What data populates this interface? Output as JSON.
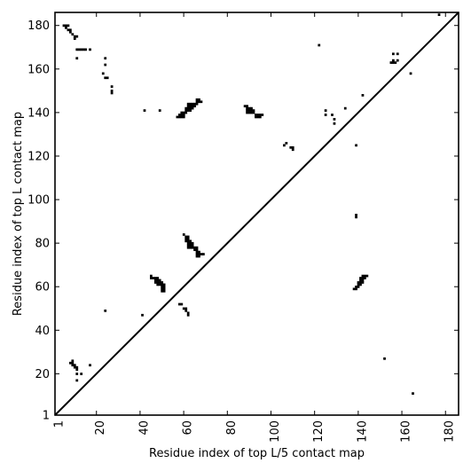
{
  "chart_data": {
    "type": "scatter",
    "xlabel": "Residue index of top L/5 contact map",
    "ylabel": "Residue index of top L contact map",
    "xlim": [
      1,
      186
    ],
    "ylim": [
      1,
      186
    ],
    "xticks": [
      1,
      20,
      40,
      60,
      80,
      100,
      120,
      140,
      160,
      180
    ],
    "yticks": [
      1,
      20,
      40,
      60,
      80,
      100,
      120,
      140,
      160,
      180
    ],
    "diagonal": true,
    "marker_color": "#000000",
    "upper_triangle_points": [
      [
        5,
        180
      ],
      [
        6,
        180
      ],
      [
        7,
        180
      ],
      [
        6,
        179
      ],
      [
        7,
        178
      ],
      [
        8,
        178
      ],
      [
        8,
        177
      ],
      [
        9,
        176
      ],
      [
        10,
        175
      ],
      [
        11,
        175
      ],
      [
        10,
        174
      ],
      [
        11,
        169
      ],
      [
        12,
        169
      ],
      [
        13,
        169
      ],
      [
        14,
        169
      ],
      [
        15,
        169
      ],
      [
        17,
        169
      ],
      [
        11,
        165
      ],
      [
        24,
        165
      ],
      [
        24,
        162
      ],
      [
        23,
        158
      ],
      [
        24,
        156
      ],
      [
        25,
        156
      ],
      [
        27,
        152
      ],
      [
        27,
        150
      ],
      [
        27,
        149
      ],
      [
        42,
        141
      ],
      [
        49,
        141
      ],
      [
        57,
        138
      ],
      [
        58,
        138
      ],
      [
        59,
        138
      ],
      [
        60,
        138
      ],
      [
        58,
        139
      ],
      [
        59,
        139
      ],
      [
        60,
        139
      ],
      [
        59,
        140
      ],
      [
        60,
        140
      ],
      [
        61,
        140
      ],
      [
        61,
        141
      ],
      [
        62,
        141
      ],
      [
        63,
        141
      ],
      [
        61,
        142
      ],
      [
        62,
        142
      ],
      [
        63,
        142
      ],
      [
        64,
        142
      ],
      [
        62,
        143
      ],
      [
        63,
        143
      ],
      [
        64,
        143
      ],
      [
        65,
        143
      ],
      [
        62,
        144
      ],
      [
        63,
        144
      ],
      [
        64,
        144
      ],
      [
        65,
        144
      ],
      [
        66,
        144
      ],
      [
        66,
        145
      ],
      [
        67,
        145
      ],
      [
        68,
        145
      ],
      [
        66,
        146
      ],
      [
        67,
        146
      ],
      [
        88,
        143
      ],
      [
        89,
        143
      ],
      [
        89,
        142
      ],
      [
        90,
        142
      ],
      [
        91,
        142
      ],
      [
        89,
        141
      ],
      [
        90,
        141
      ],
      [
        91,
        141
      ],
      [
        92,
        141
      ],
      [
        89,
        140
      ],
      [
        90,
        140
      ],
      [
        91,
        140
      ],
      [
        92,
        140
      ],
      [
        93,
        139
      ],
      [
        94,
        139
      ],
      [
        95,
        139
      ],
      [
        96,
        139
      ],
      [
        93,
        138
      ],
      [
        94,
        138
      ],
      [
        95,
        138
      ],
      [
        106,
        125
      ],
      [
        107,
        126
      ],
      [
        109,
        124
      ],
      [
        110,
        124
      ],
      [
        110,
        123
      ],
      [
        122,
        171
      ],
      [
        125,
        141
      ],
      [
        125,
        139
      ],
      [
        128,
        139
      ],
      [
        129,
        137
      ],
      [
        129,
        135
      ],
      [
        134,
        142
      ],
      [
        139,
        125
      ],
      [
        142,
        148
      ],
      [
        156,
        167
      ],
      [
        158,
        167
      ],
      [
        156,
        164
      ],
      [
        158,
        164
      ],
      [
        155,
        163
      ],
      [
        156,
        163
      ],
      [
        157,
        163
      ],
      [
        164,
        158
      ],
      [
        177,
        185
      ]
    ],
    "lower_triangle_points": [
      [
        60,
        84
      ],
      [
        61,
        83
      ],
      [
        62,
        83
      ],
      [
        61,
        82
      ],
      [
        62,
        82
      ],
      [
        61,
        81
      ],
      [
        62,
        81
      ],
      [
        63,
        81
      ],
      [
        62,
        80
      ],
      [
        63,
        80
      ],
      [
        64,
        80
      ],
      [
        62,
        79
      ],
      [
        63,
        79
      ],
      [
        64,
        79
      ],
      [
        62,
        78
      ],
      [
        63,
        78
      ],
      [
        64,
        78
      ],
      [
        65,
        78
      ],
      [
        66,
        78
      ],
      [
        65,
        77
      ],
      [
        66,
        77
      ],
      [
        66,
        76
      ],
      [
        67,
        76
      ],
      [
        66,
        75
      ],
      [
        67,
        75
      ],
      [
        68,
        75
      ],
      [
        69,
        75
      ],
      [
        66,
        74
      ],
      [
        67,
        74
      ],
      [
        45,
        65
      ],
      [
        45,
        64
      ],
      [
        46,
        64
      ],
      [
        47,
        64
      ],
      [
        48,
        64
      ],
      [
        47,
        63
      ],
      [
        48,
        63
      ],
      [
        49,
        63
      ],
      [
        47,
        62
      ],
      [
        48,
        62
      ],
      [
        49,
        62
      ],
      [
        50,
        62
      ],
      [
        48,
        61
      ],
      [
        49,
        61
      ],
      [
        50,
        61
      ],
      [
        51,
        61
      ],
      [
        50,
        60
      ],
      [
        51,
        60
      ],
      [
        50,
        59
      ],
      [
        51,
        59
      ],
      [
        50,
        58
      ],
      [
        51,
        58
      ],
      [
        58,
        52
      ],
      [
        59,
        52
      ],
      [
        60,
        50
      ],
      [
        61,
        50
      ],
      [
        61,
        49
      ],
      [
        62,
        48
      ],
      [
        62,
        47
      ],
      [
        41,
        47
      ],
      [
        24,
        49
      ],
      [
        8,
        25
      ],
      [
        9,
        25
      ],
      [
        9,
        26
      ],
      [
        9,
        24
      ],
      [
        10,
        24
      ],
      [
        10,
        23
      ],
      [
        11,
        23
      ],
      [
        11,
        22
      ],
      [
        17,
        24
      ],
      [
        11,
        20
      ],
      [
        13,
        20
      ],
      [
        11,
        17
      ],
      [
        139,
        93
      ],
      [
        139,
        92
      ],
      [
        138,
        59
      ],
      [
        139,
        59
      ],
      [
        139,
        60
      ],
      [
        140,
        60
      ],
      [
        140,
        61
      ],
      [
        141,
        61
      ],
      [
        140,
        62
      ],
      [
        141,
        62
      ],
      [
        142,
        62
      ],
      [
        141,
        63
      ],
      [
        142,
        63
      ],
      [
        141,
        64
      ],
      [
        142,
        64
      ],
      [
        143,
        64
      ],
      [
        143,
        65
      ],
      [
        144,
        65
      ],
      [
        142,
        65
      ],
      [
        152,
        27
      ],
      [
        165,
        11
      ]
    ]
  }
}
